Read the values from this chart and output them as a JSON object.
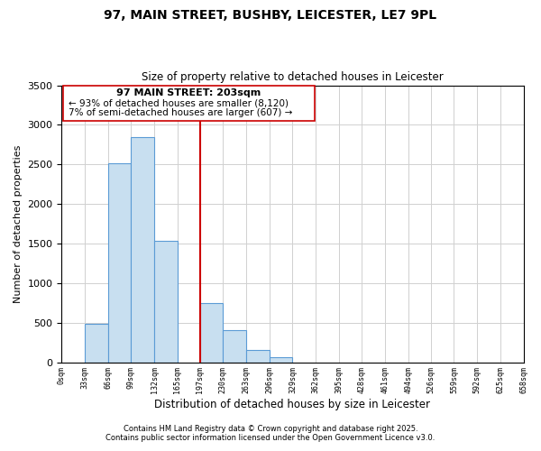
{
  "title": "97, MAIN STREET, BUSHBY, LEICESTER, LE7 9PL",
  "subtitle": "Size of property relative to detached houses in Leicester",
  "xlabel": "Distribution of detached houses by size in Leicester",
  "ylabel": "Number of detached properties",
  "bar_edges": [
    0,
    33,
    66,
    99,
    132,
    165,
    197,
    230,
    263,
    296,
    329,
    362,
    395,
    428,
    461,
    494,
    526,
    559,
    592,
    625,
    658
  ],
  "bar_heights": [
    0,
    490,
    2520,
    2840,
    1535,
    0,
    750,
    400,
    150,
    65,
    0,
    0,
    0,
    0,
    0,
    0,
    0,
    0,
    0,
    0
  ],
  "bar_color": "#c8dff0",
  "bar_edgecolor": "#5b9bd5",
  "vline_x": 197,
  "vline_color": "#cc0000",
  "ylim": [
    0,
    3500
  ],
  "xlim": [
    0,
    658
  ],
  "annotation_title": "97 MAIN STREET: 203sqm",
  "annotation_line2": "← 93% of detached houses are smaller (8,120)",
  "annotation_line3": "7% of semi-detached houses are larger (607) →",
  "tick_labels": [
    "0sqm",
    "33sqm",
    "66sqm",
    "99sqm",
    "132sqm",
    "165sqm",
    "197sqm",
    "230sqm",
    "263sqm",
    "296sqm",
    "329sqm",
    "362sqm",
    "395sqm",
    "428sqm",
    "461sqm",
    "494sqm",
    "526sqm",
    "559sqm",
    "592sqm",
    "625sqm",
    "658sqm"
  ],
  "footnote1": "Contains HM Land Registry data © Crown copyright and database right 2025.",
  "footnote2": "Contains public sector information licensed under the Open Government Licence v3.0.",
  "background_color": "#ffffff",
  "grid_color": "#d0d0d0",
  "yticks": [
    0,
    500,
    1000,
    1500,
    2000,
    2500,
    3000,
    3500
  ]
}
